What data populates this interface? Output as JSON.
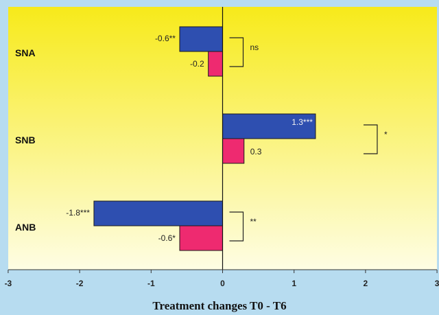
{
  "chart_data": {
    "type": "bar",
    "orientation": "horizontal",
    "categories": [
      "SNA",
      "SNB",
      "ANB"
    ],
    "series": [
      {
        "values": [
          -0.6,
          1.3,
          -1.8
        ],
        "labels": [
          "-0.6**",
          "1.3***",
          "-1.8***"
        ],
        "color": "#2e4fb0"
      },
      {
        "values": [
          -0.2,
          0.3,
          -0.6
        ],
        "labels": [
          "-0.2",
          "0.3",
          "-0.6*"
        ],
        "color": "#ee2a70"
      }
    ],
    "significance": [
      "ns",
      "*",
      "**"
    ],
    "xlabel": "Treatment changes T0 - T6",
    "xlim": [
      -3,
      3
    ],
    "xticks": [
      "-3",
      "-2",
      "-1",
      "0",
      "1",
      "2",
      "3"
    ],
    "colors": {
      "background_top": "#f7ea1a",
      "background_bottom": "#fefde4",
      "frame": "#b7dcf0"
    }
  }
}
